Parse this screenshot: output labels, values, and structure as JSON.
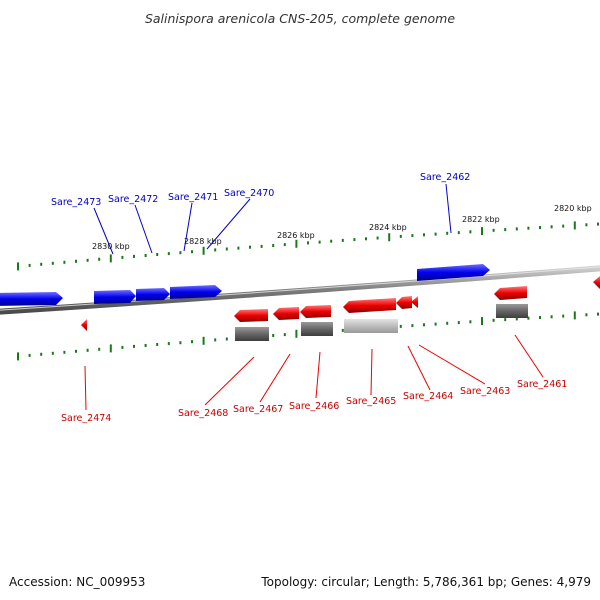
{
  "title": "Salinispora arenicola CNS-205, complete genome",
  "footer": {
    "accession": "Accession: NC_009953",
    "stats": "Topology: circular; Length: 5,786,361 bp; Genes: 4,979"
  },
  "colors": {
    "forward_gene": "#0000ee",
    "reverse_gene": "#ee0000",
    "feature_gray": "#666666",
    "feature_light": "#bbbbbb",
    "tick": "#1a7a1a",
    "backbone": "#888888"
  },
  "scale_labels": [
    "2830 kbp",
    "2828 kbp",
    "2826 kbp",
    "2824 kbp",
    "2822 kbp",
    "2820 kbp"
  ],
  "forward_labels": [
    "Sare_2473",
    "Sare_2472",
    "Sare_2471",
    "Sare_2470",
    "Sare_2462"
  ],
  "reverse_labels": [
    "Sare_2474",
    "Sare_2468",
    "Sare_2467",
    "Sare_2466",
    "Sare_2465",
    "Sare_2464",
    "Sare_2463",
    "Sare_2461"
  ]
}
